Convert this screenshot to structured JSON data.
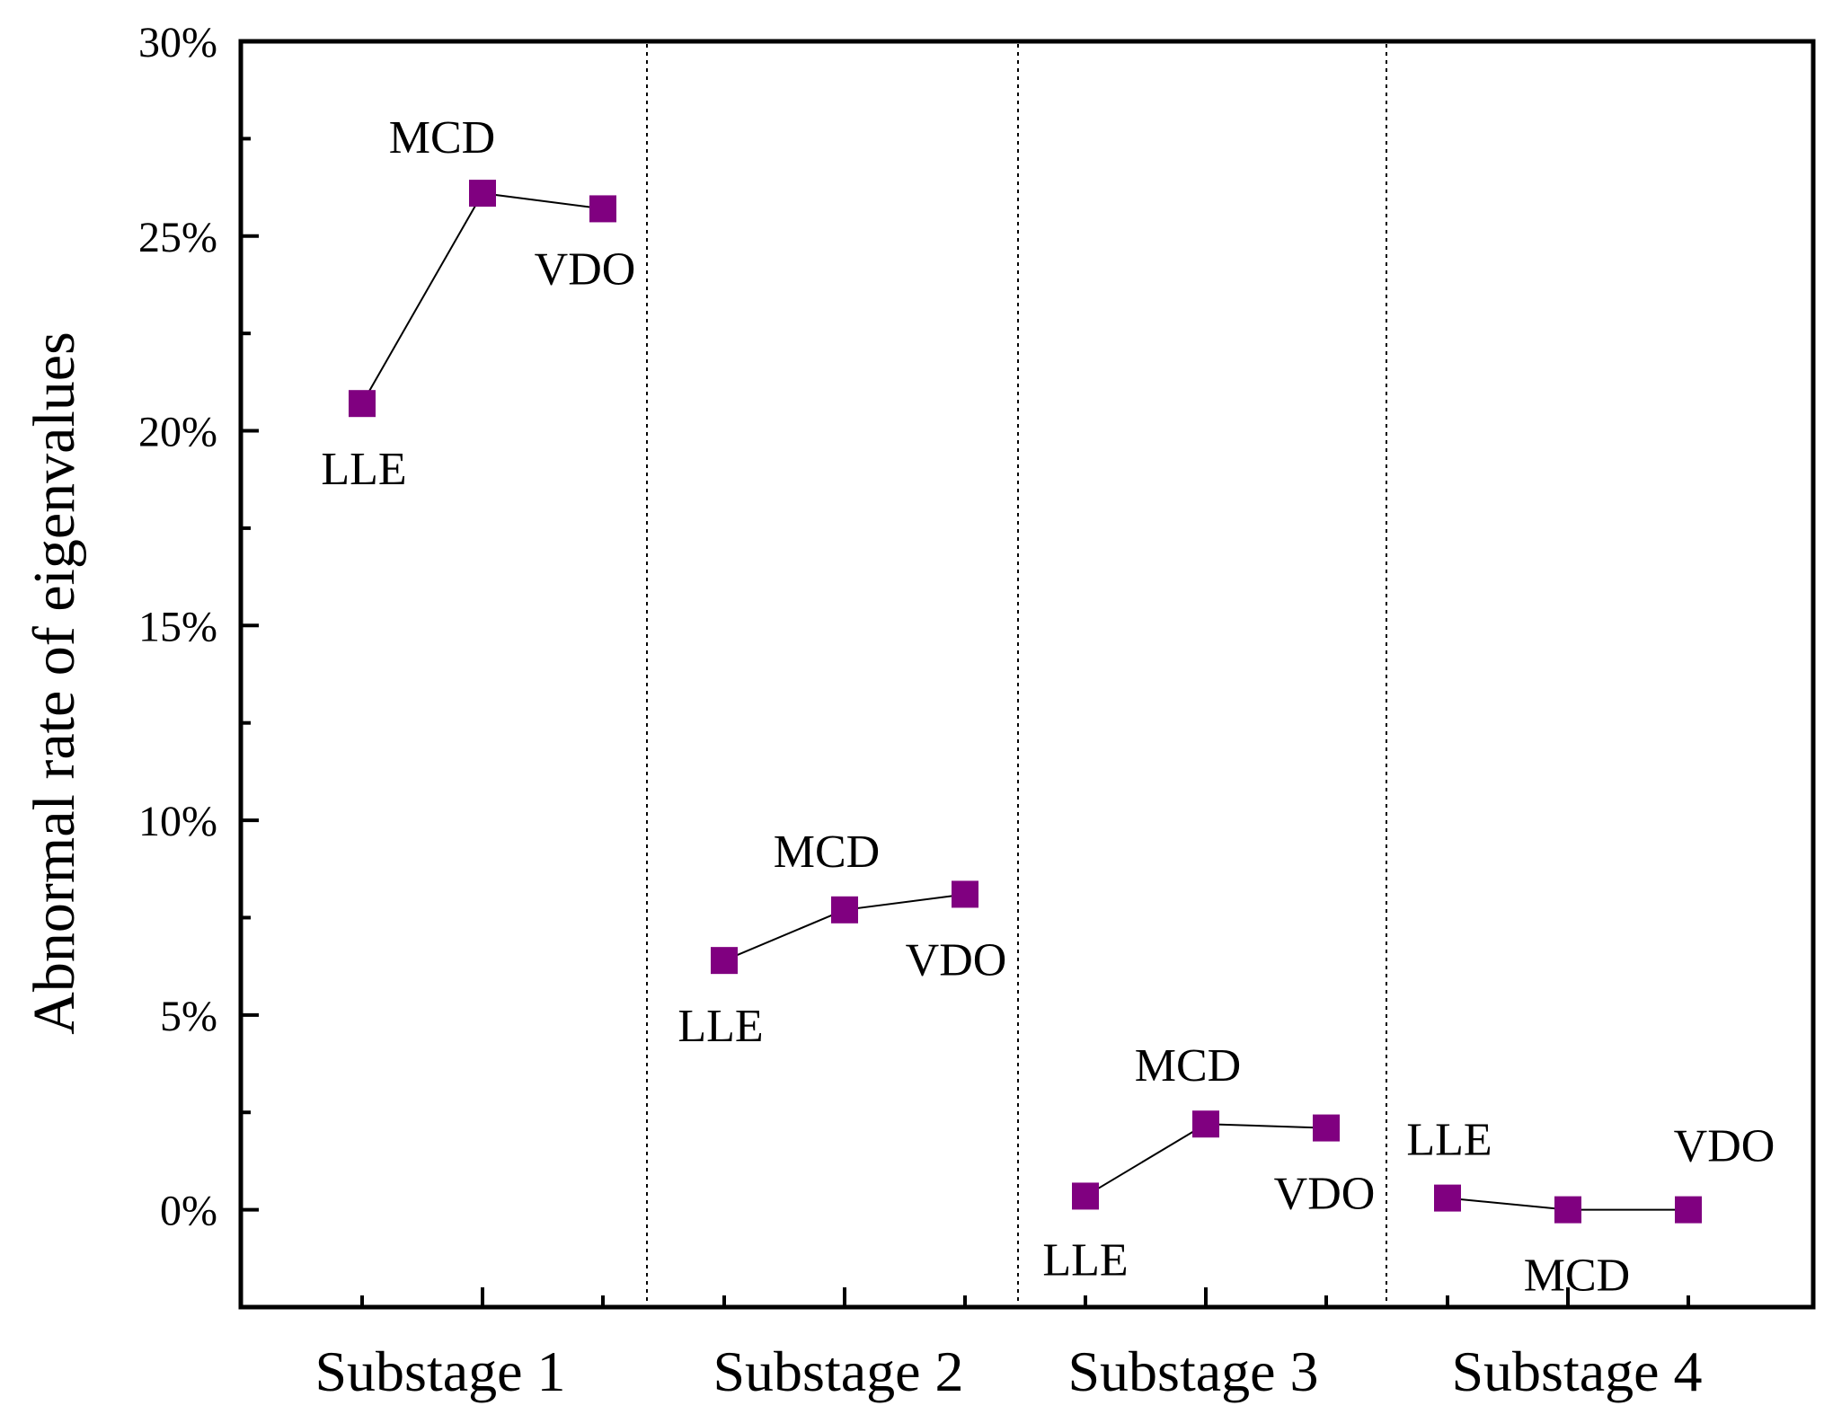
{
  "chart_data": {
    "type": "line",
    "title": "",
    "xlabel": "",
    "ylabel": "Abnormal rate of eigenvalues",
    "ylim": [
      -2.5,
      30
    ],
    "yticks": [
      0,
      5,
      10,
      15,
      20,
      25,
      30
    ],
    "ytick_labels": [
      "0%",
      "5%",
      "10%",
      "15%",
      "20%",
      "25%",
      "30%"
    ],
    "marker_color": "#800080",
    "line_color": "#000000",
    "groups": [
      {
        "name": "Substage 1",
        "points": [
          {
            "method": "LLE",
            "value": 20.7,
            "label_pos": "below"
          },
          {
            "method": "MCD",
            "value": 26.1,
            "label_pos": "above"
          },
          {
            "method": "VDO",
            "value": 25.7,
            "label_pos": "below"
          }
        ]
      },
      {
        "name": "Substage 2",
        "points": [
          {
            "method": "LLE",
            "value": 6.4,
            "label_pos": "below"
          },
          {
            "method": "MCD",
            "value": 7.7,
            "label_pos": "above"
          },
          {
            "method": "VDO",
            "value": 8.1,
            "label_pos": "below"
          }
        ]
      },
      {
        "name": "Substage 3",
        "points": [
          {
            "method": "LLE",
            "value": 0.35,
            "label_pos": "below"
          },
          {
            "method": "MCD",
            "value": 2.2,
            "label_pos": "above"
          },
          {
            "method": "VDO",
            "value": 2.1,
            "label_pos": "below"
          }
        ]
      },
      {
        "name": "Substage 4",
        "points": [
          {
            "method": "LLE",
            "value": 0.3,
            "label_pos": "above"
          },
          {
            "method": "MCD",
            "value": 0.0,
            "label_pos": "below"
          },
          {
            "method": "VDO",
            "value": 0.0,
            "label_pos": "above"
          }
        ]
      }
    ]
  }
}
